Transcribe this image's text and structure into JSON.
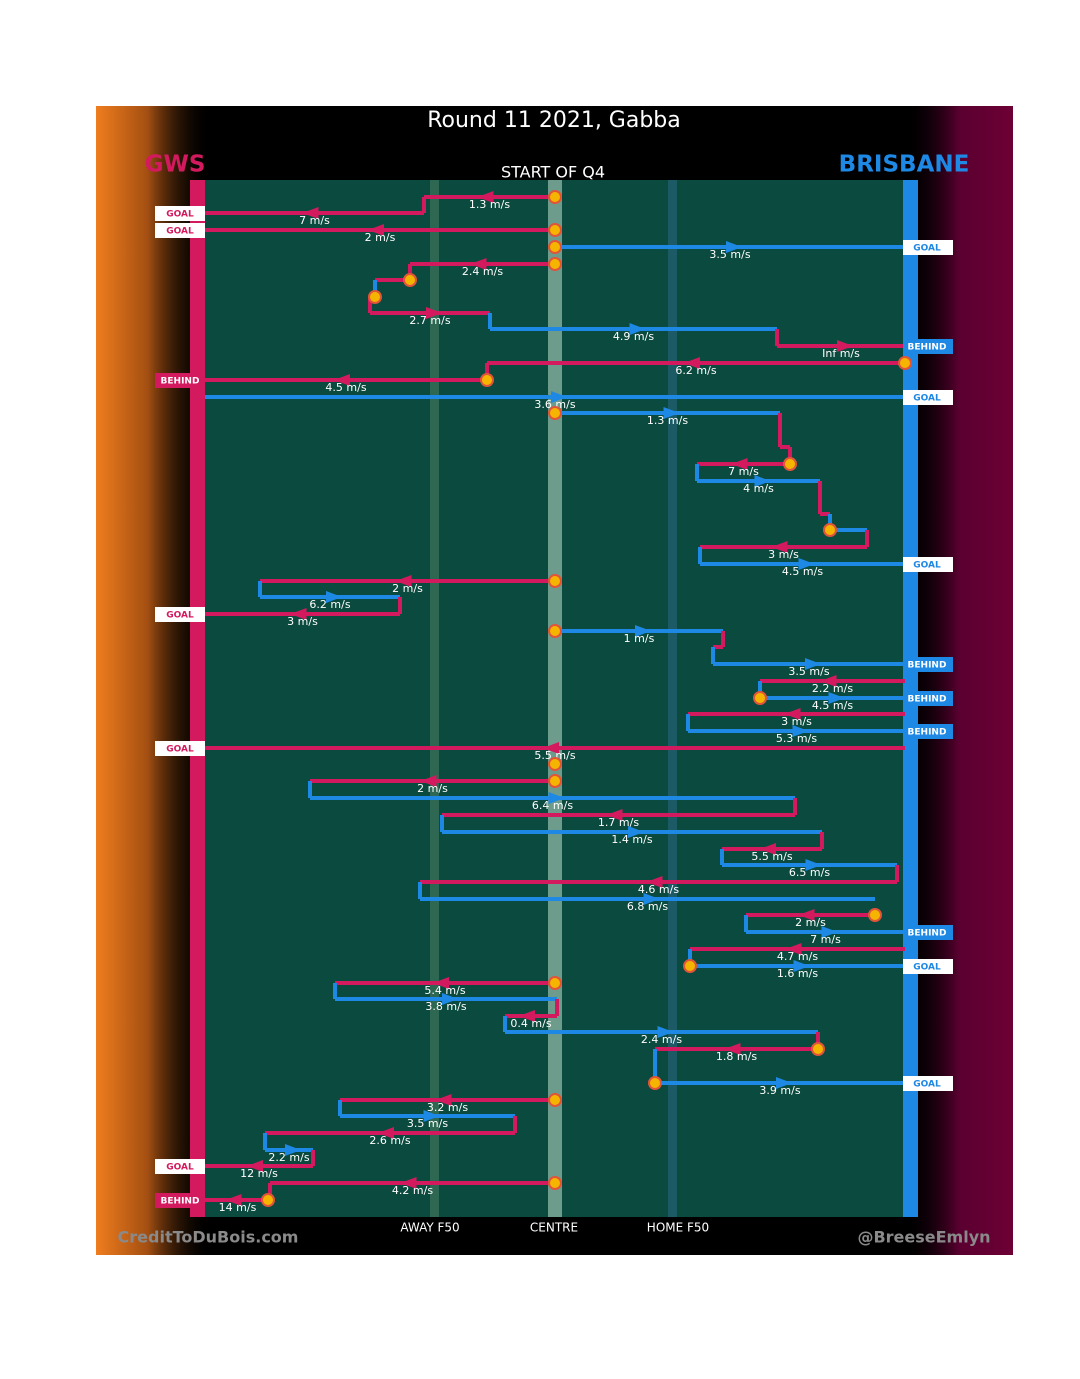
{
  "title": "Round 11 2021, Gabba",
  "left_team": "GWS",
  "right_team": "BRISBANE",
  "period": "START OF Q4",
  "field_labels": [
    "AWAY F50",
    "CENTRE",
    "HOME F50"
  ],
  "credits": [
    "CreditToDuBois.com",
    "@BreeseEmlyn"
  ],
  "speeds": [
    "1.3 m/s",
    "7 m/s",
    "2 m/s",
    "3.5 m/s",
    "2.4 m/s",
    "2.7 m/s",
    "4.9 m/s",
    "Inf m/s",
    "6.2 m/s",
    "4.5 m/s",
    "3.6 m/s",
    "1.3 m/s",
    "7 m/s",
    "4 m/s",
    "3 m/s",
    "4.5 m/s",
    "2 m/s",
    "6.2 m/s",
    "3 m/s",
    "1 m/s",
    "3.5 m/s",
    "2.2 m/s",
    "4.5 m/s",
    "3 m/s",
    "5.3 m/s",
    "5.5 m/s",
    "2 m/s",
    "6.4 m/s",
    "1.7 m/s",
    "1.4 m/s",
    "5.5 m/s",
    "6.5 m/s",
    "4.6 m/s",
    "6.8 m/s",
    "2 m/s",
    "7 m/s",
    "4.7 m/s",
    "1.6 m/s",
    "5.4 m/s",
    "3.8 m/s",
    "0.4 m/s",
    "2.4 m/s",
    "1.8 m/s",
    "3.9 m/s",
    "3.2 m/s",
    "3.5 m/s",
    "2.6 m/s",
    "2.2 m/s",
    "12 m/s",
    "4.2 m/s",
    "14 m/s"
  ],
  "outcomes": [
    "GOAL",
    "GOAL",
    "GOAL",
    "BEHIND",
    "BEHIND",
    "GOAL",
    "GOAL",
    "GOAL",
    "BEHIND",
    "BEHIND",
    "BEHIND",
    "GOAL",
    "BEHIND",
    "GOAL",
    "GOAL",
    "GOAL",
    "BEHIND"
  ]
}
